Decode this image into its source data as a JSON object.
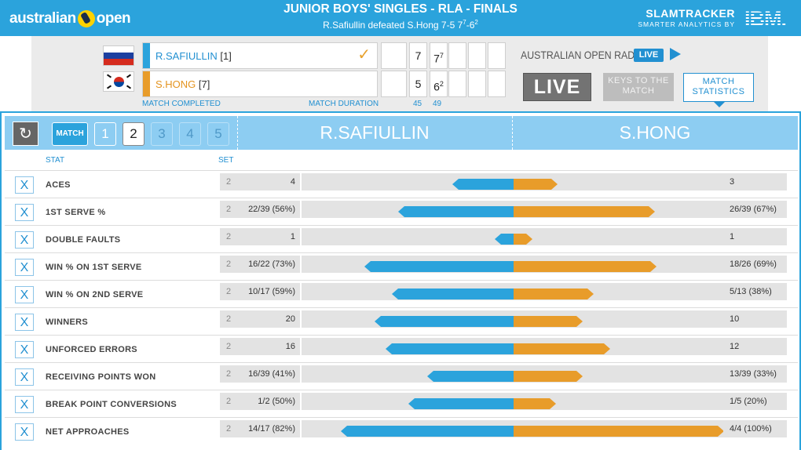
{
  "header": {
    "logo_text_left": "australian",
    "logo_text_right": "open",
    "title": "JUNIOR BOYS' SINGLES - RLA - FINALS",
    "subtitle_main": "R.Safiullin defeated S.Hong 7-5 7",
    "subtitle_sup1": "7",
    "subtitle_mid": "-6",
    "subtitle_sup2": "2",
    "slamtracker": "SLAMTRACKER",
    "slamtracker_sub": "SMARTER ANALYTICS BY",
    "ibm": "IBM."
  },
  "scoreboard": {
    "player1": {
      "name": "R.SAFIULLIN",
      "seed": "[1]",
      "winner_mark": "✓",
      "sets": [
        "",
        "7",
        "7",
        "",
        "",
        ""
      ],
      "tb": [
        "",
        "",
        "7",
        "",
        "",
        ""
      ]
    },
    "player2": {
      "name": "S.HONG",
      "seed": "[7]",
      "sets": [
        "",
        "5",
        "6",
        "",
        "",
        ""
      ],
      "tb": [
        "",
        "",
        "2",
        "",
        "",
        ""
      ]
    },
    "status": "MATCH COMPLETED",
    "duration_label": "MATCH DURATION",
    "durations": [
      "45",
      "49"
    ],
    "radio": "AUSTRALIAN OPEN RADIO",
    "radio_live": "LIVE",
    "btn_live": "LIVE",
    "btn_keys": "KEYS TO THE MATCH",
    "btn_stats": "MATCH STATISTICS"
  },
  "stats_panel": {
    "set_buttons": [
      "MATCH",
      "1",
      "2",
      "3",
      "4",
      "5"
    ],
    "selected_set": "2",
    "player1": "R.SAFIULLIN",
    "player2": "S.HONG",
    "col_stat": "STAT",
    "col_set": "SET",
    "colors": {
      "player1": "#2ba3dc",
      "player2": "#e89c2a"
    },
    "rows": [
      {
        "stat": "ACES",
        "set": "2",
        "p1": "4",
        "p2": "3",
        "p1_frac": 0.29,
        "p2_frac": 0.21
      },
      {
        "stat": "1ST SERVE %",
        "set": "2",
        "p1": "22/39 (56%)",
        "p2": "26/39 (67%)",
        "p1_frac": 0.55,
        "p2_frac": 0.67
      },
      {
        "stat": "DOUBLE FAULTS",
        "set": "2",
        "p1": "1",
        "p2": "1",
        "p1_frac": 0.09,
        "p2_frac": 0.09
      },
      {
        "stat": "WIN % ON 1ST SERVE",
        "set": "2",
        "p1": "16/22 (73%)",
        "p2": "18/26 (69%)",
        "p1_frac": 0.71,
        "p2_frac": 0.68
      },
      {
        "stat": "WIN % ON 2ND SERVE",
        "set": "2",
        "p1": "10/17 (59%)",
        "p2": "5/13 (38%)",
        "p1_frac": 0.58,
        "p2_frac": 0.38
      },
      {
        "stat": "WINNERS",
        "set": "2",
        "p1": "20",
        "p2": "10",
        "p1_frac": 0.66,
        "p2_frac": 0.33
      },
      {
        "stat": "UNFORCED ERRORS",
        "set": "2",
        "p1": "16",
        "p2": "12",
        "p1_frac": 0.61,
        "p2_frac": 0.46
      },
      {
        "stat": "RECEIVING POINTS WON",
        "set": "2",
        "p1": "16/39 (41%)",
        "p2": "13/39 (33%)",
        "p1_frac": 0.41,
        "p2_frac": 0.33
      },
      {
        "stat": "BREAK POINT CONVERSIONS",
        "set": "2",
        "p1": "1/2 (50%)",
        "p2": "1/5 (20%)",
        "p1_frac": 0.5,
        "p2_frac": 0.2
      },
      {
        "stat": "NET APPROACHES",
        "set": "2",
        "p1": "14/17 (82%)",
        "p2": "4/4 (100%)",
        "p1_frac": 0.82,
        "p2_frac": 1.0
      }
    ]
  }
}
